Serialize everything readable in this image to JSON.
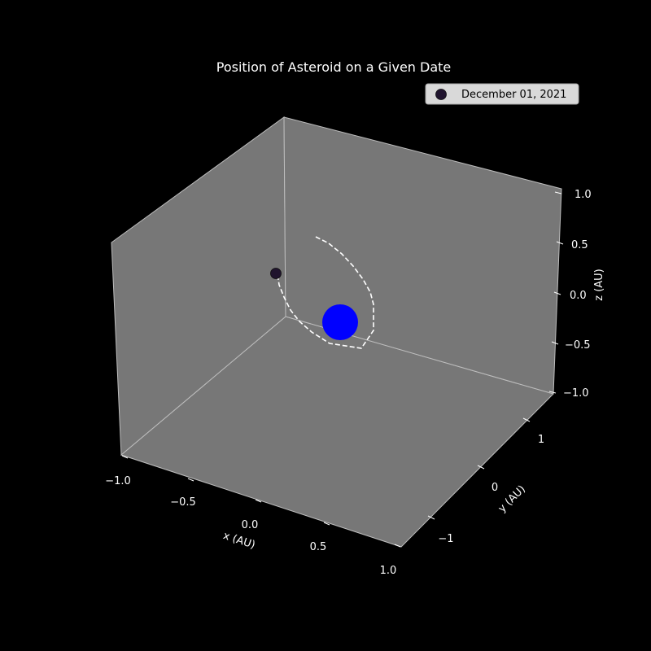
{
  "chart_data": {
    "type": "scatter",
    "title": "Position of Asteroid on a Given Date",
    "xlabel": "x (AU)",
    "ylabel": "y (AU)",
    "zlabel": "z (AU)",
    "xlim": [
      -1.0,
      1.0
    ],
    "ylim": [
      -1.5,
      1.5
    ],
    "zlim": [
      -1.0,
      1.0
    ],
    "x_ticks": [
      "−1.0",
      "−0.5",
      "0.0",
      "0.5",
      "1.0"
    ],
    "y_ticks": [
      "−1",
      "0",
      "1"
    ],
    "z_ticks": [
      "−1.0",
      "−0.5",
      "0.0",
      "0.5",
      "1.0"
    ],
    "grid": false,
    "legend_position": "top-right",
    "background": "#000000",
    "pane_color": "#777777",
    "sun": {
      "name": "Sun",
      "x": 0,
      "y": 0,
      "z": 0,
      "color": "#0000ff"
    },
    "asteroid": {
      "label": "December 01, 2021",
      "color": "#20142e"
    },
    "orbit_path": {
      "style": "dashed",
      "color": "#ffffff"
    }
  }
}
